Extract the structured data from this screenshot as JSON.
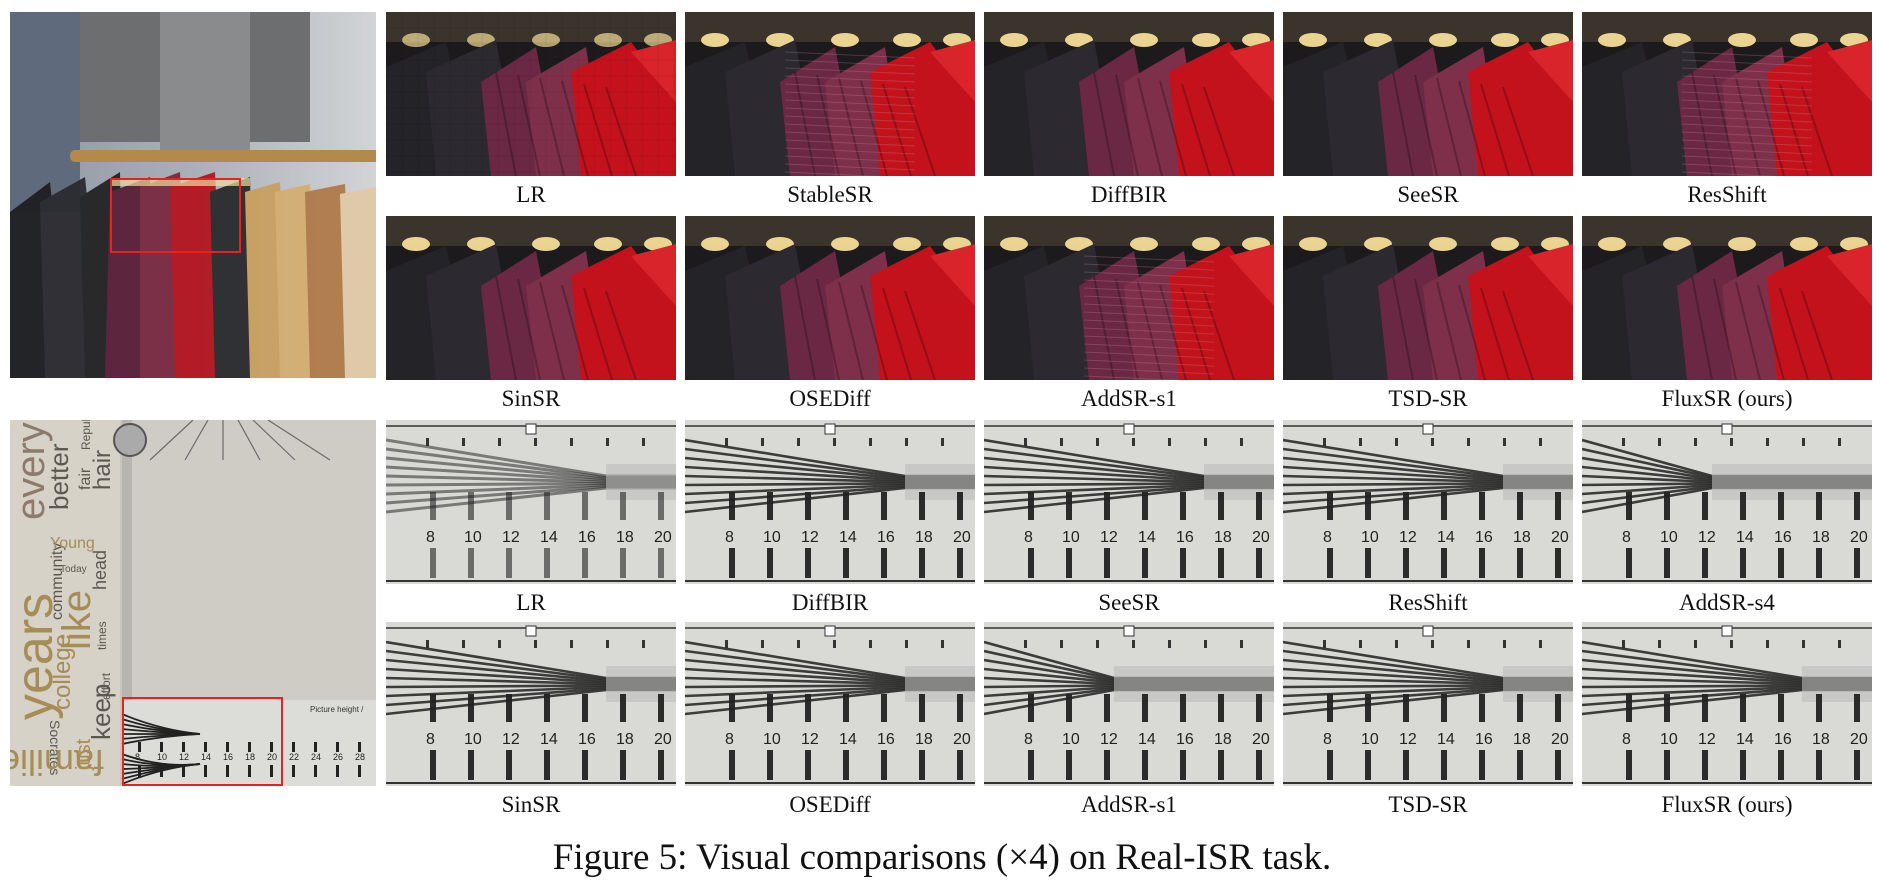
{
  "figure": {
    "caption": "Figure 5: Visual comparisons (×4) on Real-ISR task."
  },
  "rows": [
    {
      "labels": [
        "LR",
        "StableSR",
        "DiffBIR",
        "SeeSR",
        "ResShift"
      ]
    },
    {
      "labels": [
        "SinSR",
        "OSEDiff",
        "AddSR-s1",
        "TSD-SR",
        "FluxSR (ours)"
      ]
    },
    {
      "labels": [
        "LR",
        "DiffBIR",
        "SeeSR",
        "ResShift",
        "AddSR-s4"
      ]
    },
    {
      "labels": [
        "SinSR",
        "OSEDiff",
        "AddSR-s1",
        "TSD-SR",
        "FluxSR (ours)"
      ]
    }
  ],
  "chart_ticks": [
    "8",
    "10",
    "12",
    "14",
    "16",
    "18",
    "20"
  ],
  "overview_chart_ticks": [
    "8",
    "10",
    "12",
    "14",
    "16",
    "18",
    "20",
    "22",
    "24",
    "26",
    "28"
  ],
  "overview_text": {
    "words": [
      "years",
      "every",
      "better",
      "fair",
      "Republic",
      "hair",
      "community",
      "Young",
      "Today",
      "head",
      "like",
      "times",
      "effort",
      "college",
      "keep",
      "just",
      "Socrates",
      "families"
    ],
    "picture_label": "Picture height /"
  },
  "colors": {
    "roi": "#e8221f",
    "coat_red": "#c4121c",
    "coat_plum": "#6e2a44",
    "chart_bg": "#d9d9d6"
  }
}
